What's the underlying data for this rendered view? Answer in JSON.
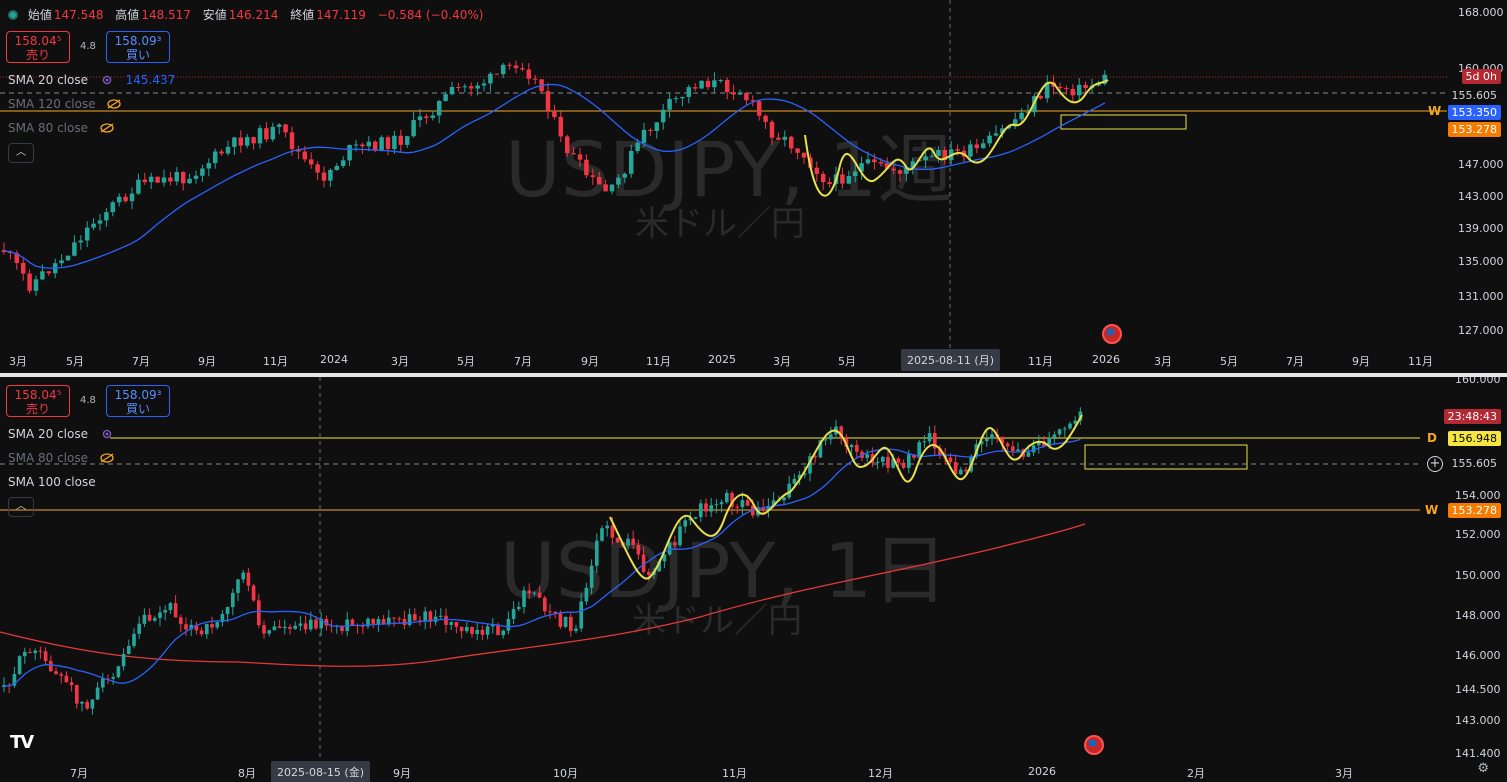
{
  "symbol": "USDJPY",
  "ohlc": {
    "open_label": "始値",
    "open": "147.548",
    "high_label": "高値",
    "high": "148.517",
    "low_label": "安値",
    "low": "146.214",
    "close_label": "終値",
    "close": "147.119",
    "change": "−0.584 (−0.40%)"
  },
  "top": {
    "trade": {
      "sell_price": "158.04⁵",
      "sell_label": "売り",
      "spread": "4.8",
      "buy_price": "158.09³",
      "buy_label": "買い"
    },
    "indicators": [
      {
        "label": "SMA 20 close",
        "value": "145.437"
      },
      {
        "label": "SMA 120 close"
      },
      {
        "label": "SMA 80 close"
      }
    ],
    "watermark_title": "USDJPY, 1週",
    "watermark_sub": "米ドル／円",
    "price_ticks": [
      "168.000",
      "160.000",
      "147.000",
      "143.000",
      "139.000",
      "135.000",
      "131.000",
      "127.000"
    ],
    "price_tags": {
      "countdown": "5d 0h",
      "dashed": "155.605",
      "sma": "153.350",
      "orange": "153.278"
    },
    "side_letter": "W",
    "time_ticks": [
      "3月",
      "5月",
      "7月",
      "9月",
      "11月",
      "2024",
      "3月",
      "5月",
      "7月",
      "9月",
      "11月",
      "2025",
      "3月",
      "5月",
      "11月",
      "2026",
      "3月",
      "5月",
      "7月",
      "9月",
      "11月"
    ],
    "crosshair_date": "2025-08-11 (月)"
  },
  "bottom": {
    "trade": {
      "sell_price": "158.04⁵",
      "sell_label": "売り",
      "spread": "4.8",
      "buy_price": "158.09³",
      "buy_label": "買い"
    },
    "indicators": [
      {
        "label": "SMA 20 close"
      },
      {
        "label": "SMA 80 close"
      },
      {
        "label": "SMA 100 close"
      }
    ],
    "watermark_title": "USDJPY, 1日",
    "watermark_sub": "米ドル／円",
    "price_ticks": [
      "160.000",
      "154.000",
      "152.000",
      "150.000",
      "148.000",
      "146.000",
      "144.500",
      "143.000",
      "141.400"
    ],
    "price_tags": {
      "countdown": "23:48:43",
      "yellow": "156.948",
      "dashed": "155.605",
      "orange": "153.278"
    },
    "side_letters": {
      "d": "D",
      "w": "W"
    },
    "time_ticks": [
      "7月",
      "8月",
      "9月",
      "10月",
      "11月",
      "12月",
      "2026",
      "2月",
      "3月"
    ],
    "crosshair_date": "2025-08-15 (金)"
  },
  "colors": {
    "up": "#26a69a",
    "down": "#f23645",
    "sma_blue": "#2962ff",
    "sma_red": "#e53935",
    "wave": "#e8e04a",
    "orange": "#f5a623"
  }
}
